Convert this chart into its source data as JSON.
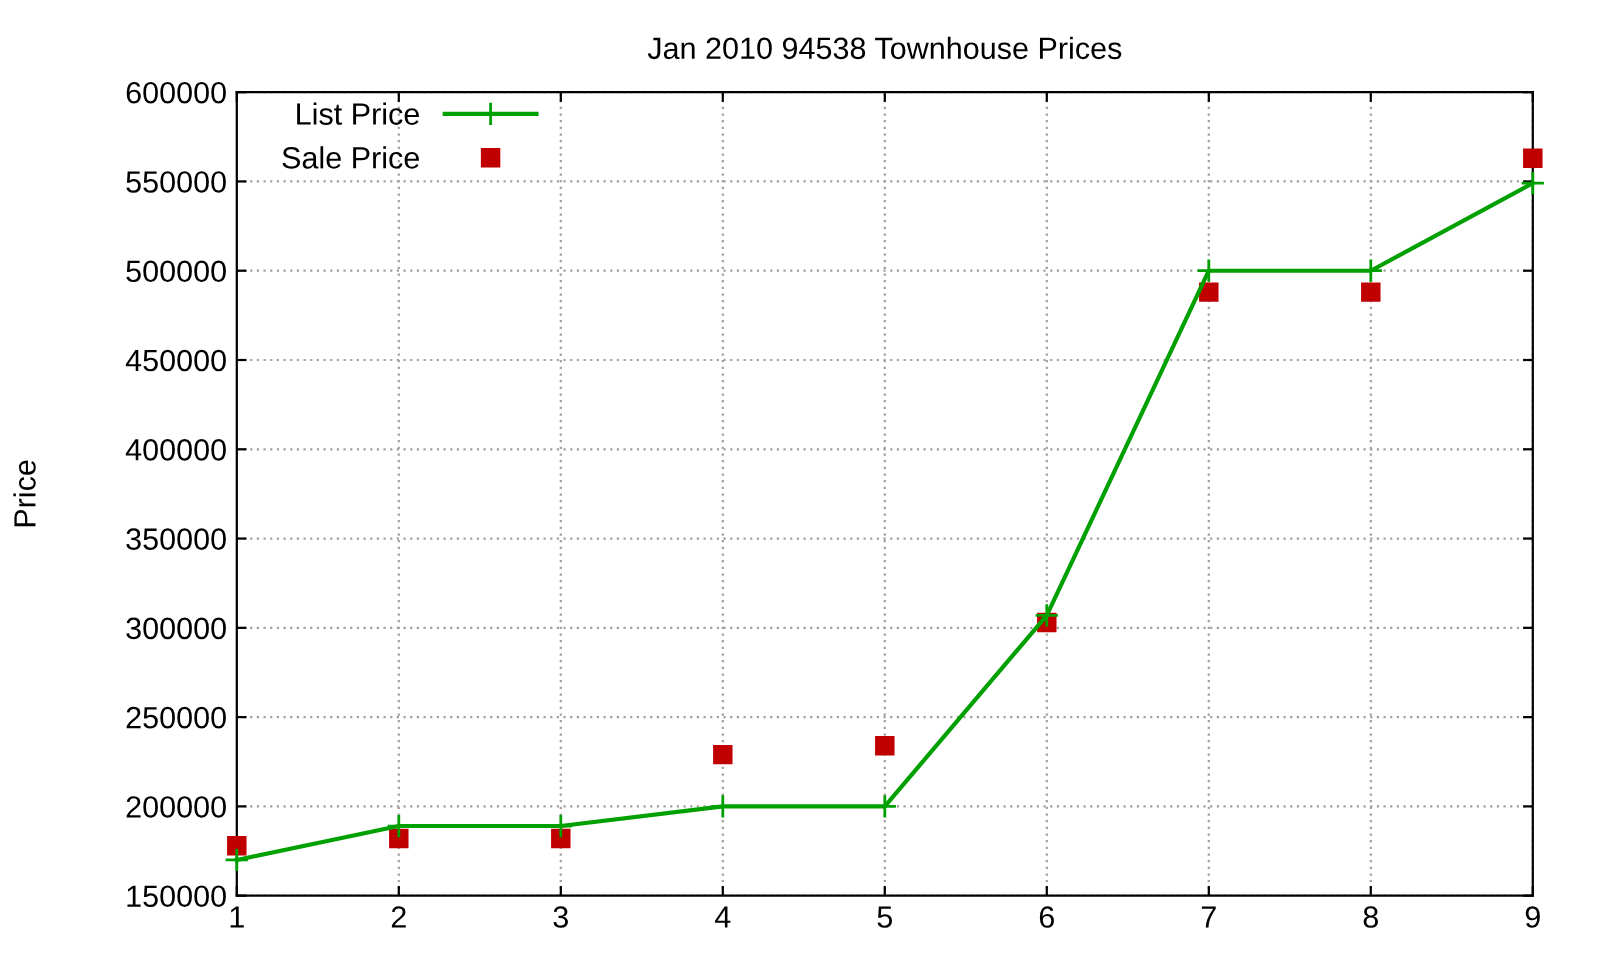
{
  "chart_data": {
    "type": "line",
    "title": "Jan 2010 94538 Townhouse Prices",
    "ylabel": "Price",
    "x": [
      1,
      2,
      3,
      4,
      5,
      6,
      7,
      8,
      9
    ],
    "series": [
      {
        "name": "List Price",
        "color": "#00a000",
        "marker": "cross",
        "values": [
          170000,
          189000,
          189000,
          200000,
          200000,
          307000,
          500000,
          500000,
          549000
        ]
      },
      {
        "name": "Sale Price",
        "color": "#c00000",
        "type": "scatter",
        "marker": "square",
        "values": [
          178000,
          182000,
          182000,
          229000,
          234000,
          303000,
          488000,
          488000,
          563000
        ]
      }
    ],
    "xlim": [
      1,
      9
    ],
    "xticks": [
      1,
      2,
      3,
      4,
      5,
      6,
      7,
      8,
      9
    ],
    "ylim": [
      150000,
      600000
    ],
    "yticks": [
      150000,
      200000,
      250000,
      300000,
      350000,
      400000,
      450000,
      500000,
      550000,
      600000
    ],
    "grid": true,
    "legend": "top left"
  }
}
